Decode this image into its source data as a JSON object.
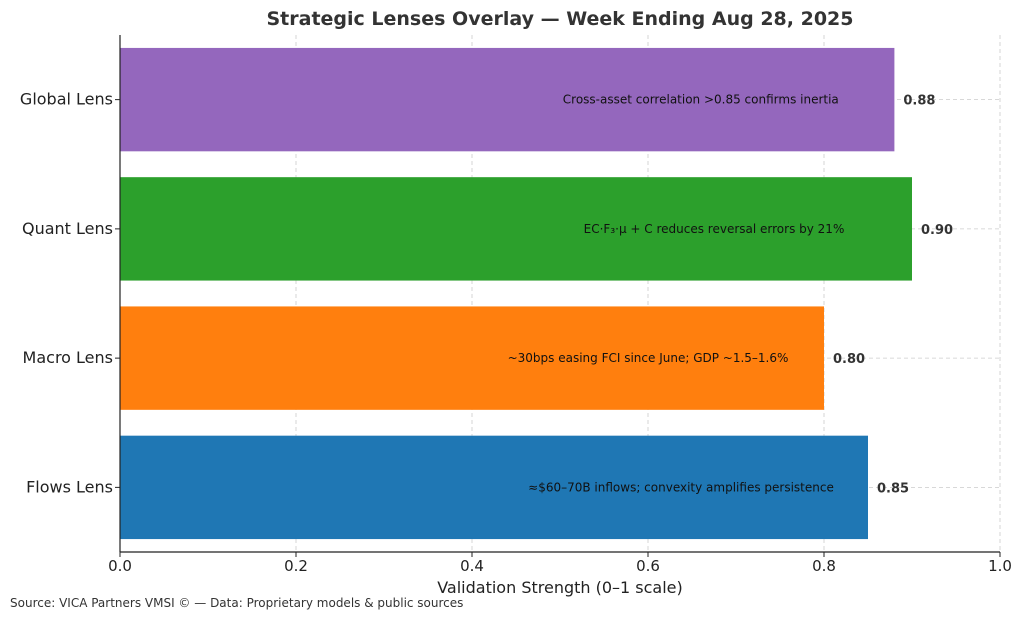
{
  "chart_data": {
    "type": "bar",
    "orientation": "horizontal",
    "title": "Strategic Lenses Overlay — Week Ending Aug 28, 2025",
    "xlabel": "Validation Strength (0–1 scale)",
    "ylabel": "",
    "xlim": [
      0,
      1
    ],
    "xticks": [
      "0.0",
      "0.2",
      "0.4",
      "0.6",
      "0.8",
      "1.0"
    ],
    "grid": true,
    "categories": [
      "Global Lens",
      "Quant Lens",
      "Macro Lens",
      "Flows Lens"
    ],
    "values": [
      0.88,
      0.9,
      0.8,
      0.85
    ],
    "value_labels": [
      "0.88",
      "0.90",
      "0.80",
      "0.85"
    ],
    "annotations": [
      "Cross-asset correlation >0.85 confirms inertia",
      "EC·F₃·μ + C reduces reversal errors by 21%",
      "~30bps easing FCI since June; GDP ~1.5–1.6%",
      "≈$60–70B inflows; convexity amplifies persistence"
    ],
    "colors": [
      "#9467bd",
      "#2ca02c",
      "#ff7f0e",
      "#1f77b4"
    ]
  },
  "footer": {
    "source": "Source: VICA Partners VMSI © — Data: Proprietary models & public sources"
  }
}
